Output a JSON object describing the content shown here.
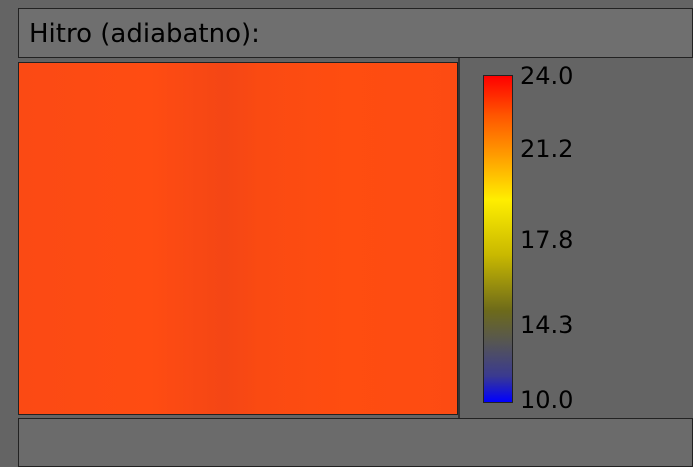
{
  "panel": {
    "title": "Hitro (adiabatno):",
    "colorbar": {
      "ticks": [
        "24.0",
        "21.2",
        "17.8",
        "14.3",
        "10.0"
      ]
    }
  }
}
